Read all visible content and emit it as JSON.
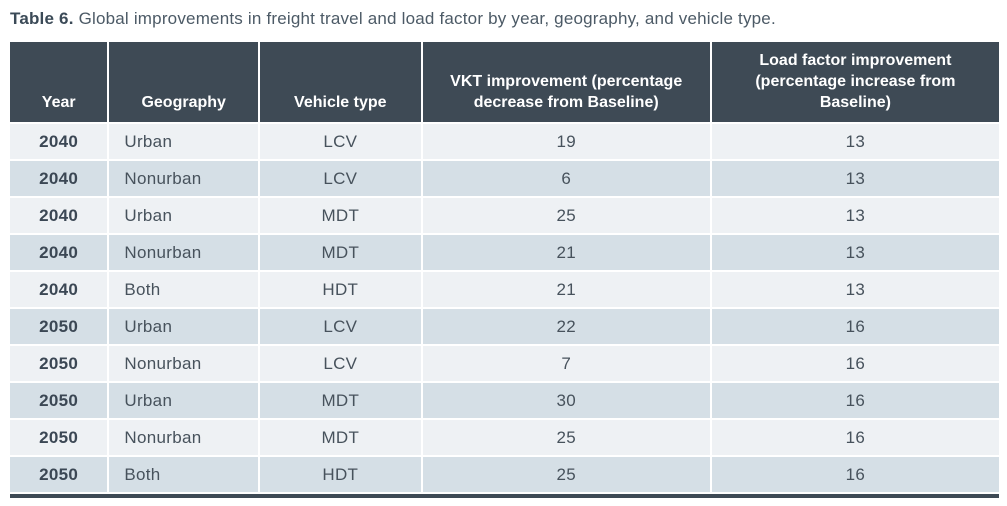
{
  "caption": {
    "label": "Table 6.",
    "text": " Global improvements in freight travel and load factor by year, geography, and vehicle type."
  },
  "table": {
    "columns": [
      {
        "key": "year",
        "label": "Year"
      },
      {
        "key": "geography",
        "label": "Geography"
      },
      {
        "key": "vehicle_type",
        "label": "Vehicle type"
      },
      {
        "key": "vkt",
        "label": "VKT improvement (percentage decrease from Baseline)"
      },
      {
        "key": "load_factor",
        "label": "Load factor improvement (percentage increase from Baseline)"
      }
    ],
    "rows": [
      {
        "year": "2040",
        "geography": "Urban",
        "vehicle_type": "LCV",
        "vkt": "19",
        "load_factor": "13"
      },
      {
        "year": "2040",
        "geography": "Nonurban",
        "vehicle_type": "LCV",
        "vkt": "6",
        "load_factor": "13"
      },
      {
        "year": "2040",
        "geography": "Urban",
        "vehicle_type": "MDT",
        "vkt": "25",
        "load_factor": "13"
      },
      {
        "year": "2040",
        "geography": "Nonurban",
        "vehicle_type": "MDT",
        "vkt": "21",
        "load_factor": "13"
      },
      {
        "year": "2040",
        "geography": "Both",
        "vehicle_type": "HDT",
        "vkt": "21",
        "load_factor": "13"
      },
      {
        "year": "2050",
        "geography": "Urban",
        "vehicle_type": "LCV",
        "vkt": "22",
        "load_factor": "16"
      },
      {
        "year": "2050",
        "geography": "Nonurban",
        "vehicle_type": "LCV",
        "vkt": "7",
        "load_factor": "16"
      },
      {
        "year": "2050",
        "geography": "Urban",
        "vehicle_type": "MDT",
        "vkt": "30",
        "load_factor": "16"
      },
      {
        "year": "2050",
        "geography": "Nonurban",
        "vehicle_type": "MDT",
        "vkt": "25",
        "load_factor": "16"
      },
      {
        "year": "2050",
        "geography": "Both",
        "vehicle_type": "HDT",
        "vkt": "25",
        "load_factor": "16"
      }
    ]
  },
  "colors": {
    "header_background": "#3E4A55",
    "header_text": "#FFFFFF",
    "row_light": "#EEF1F4",
    "row_shaded": "#D5DFE6",
    "year_text": "#3B4754",
    "body_text": "#47525C",
    "bottom_rule": "#3E4A55",
    "separator": "#FFFFFF"
  },
  "chart_data": {
    "type": "table",
    "title": "Table 6. Global improvements in freight travel and load factor by year, geography, and vehicle type.",
    "columns": [
      "Year",
      "Geography",
      "Vehicle type",
      "VKT improvement (percentage decrease from Baseline)",
      "Load factor improvement (percentage increase from Baseline)"
    ],
    "rows": [
      [
        "2040",
        "Urban",
        "LCV",
        19,
        13
      ],
      [
        "2040",
        "Nonurban",
        "LCV",
        6,
        13
      ],
      [
        "2040",
        "Urban",
        "MDT",
        25,
        13
      ],
      [
        "2040",
        "Nonurban",
        "MDT",
        21,
        13
      ],
      [
        "2040",
        "Both",
        "HDT",
        21,
        13
      ],
      [
        "2050",
        "Urban",
        "LCV",
        22,
        16
      ],
      [
        "2050",
        "Nonurban",
        "LCV",
        7,
        16
      ],
      [
        "2050",
        "Urban",
        "MDT",
        30,
        16
      ],
      [
        "2050",
        "Nonurban",
        "MDT",
        25,
        16
      ],
      [
        "2050",
        "Both",
        "HDT",
        25,
        16
      ]
    ]
  }
}
